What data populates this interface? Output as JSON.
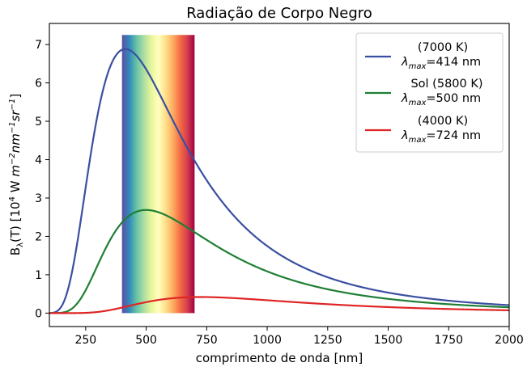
{
  "chart_data": {
    "type": "line",
    "title": "Radiação de Corpo Negro",
    "xlabel": "comprimento de onda [nm]",
    "ylabel": {
      "prefix": "B",
      "sub": "λ",
      "main": "(T) [10",
      "exp4": "4",
      "mid": " W ",
      "unit_m": "m",
      "exp_m": "−2",
      "unit_nm": "nm",
      "exp_nm": "−1",
      "unit_sr": "sr",
      "exp_sr": "−1",
      "close": "]"
    },
    "xlim": [
      100,
      2000
    ],
    "ylim": [
      -0.35,
      7.55
    ],
    "x_ticks": [
      250,
      500,
      750,
      1000,
      1250,
      1500,
      1750,
      2000
    ],
    "y_ticks": [
      0,
      1,
      2,
      3,
      4,
      5,
      6,
      7
    ],
    "visible_band": {
      "x_start": 400,
      "x_end": 700,
      "y_top": 7.25,
      "y_bottom": 0.0
    },
    "series": [
      {
        "temperature_K": 7000,
        "peak_nm": 414,
        "color": "#3a4fa1",
        "legend_line1": "(7000 K)",
        "legend_line2_sym": "λ",
        "legend_line2_sub": "max",
        "legend_line2_rest": "=414 nm"
      },
      {
        "temperature_K": 5800,
        "peak_nm": 500,
        "color": "#1e7f34",
        "legend_line1": "Sol (5800 K)",
        "legend_line2_sym": "λ",
        "legend_line2_sub": "max",
        "legend_line2_rest": "=500 nm"
      },
      {
        "temperature_K": 4000,
        "peak_nm": 724,
        "color": "#e02525",
        "legend_line1": "(4000 K)",
        "legend_line2_sym": "λ",
        "legend_line2_sub": "max",
        "legend_line2_rest": "=724 nm"
      }
    ],
    "legend_position": "upper-right",
    "grid": false
  }
}
